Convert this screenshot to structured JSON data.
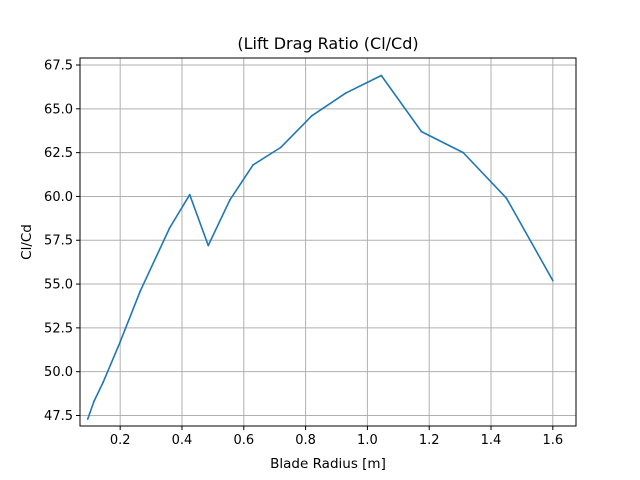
{
  "chart_data": {
    "type": "line",
    "title": "(Lift Drag Ratio (Cl/Cd)",
    "xlabel": "Blade Radius [m]",
    "ylabel": "Cl/Cd",
    "xlim": [
      0.07,
      1.675
    ],
    "ylim": [
      46.9,
      67.9
    ],
    "grid": true,
    "xticks": [
      0.2,
      0.4,
      0.6,
      0.8,
      1.0,
      1.2,
      1.4,
      1.6
    ],
    "xtick_labels": [
      "0.2",
      "0.4",
      "0.6",
      "0.8",
      "1.0",
      "1.2",
      "1.4",
      "1.6"
    ],
    "yticks": [
      47.5,
      50.0,
      52.5,
      55.0,
      57.5,
      60.0,
      62.5,
      65.0,
      67.5
    ],
    "ytick_labels": [
      "47.5",
      "50.0",
      "52.5",
      "55.0",
      "57.5",
      "60.0",
      "62.5",
      "65.0",
      "67.5"
    ],
    "series": [
      {
        "color": "#1f77b4",
        "x": [
          0.095,
          0.115,
          0.145,
          0.2,
          0.265,
          0.36,
          0.425,
          0.485,
          0.555,
          0.63,
          0.72,
          0.82,
          0.93,
          1.045,
          1.175,
          1.31,
          1.45,
          1.6
        ],
        "y": [
          47.3,
          48.3,
          49.4,
          51.7,
          54.6,
          58.2,
          60.1,
          57.2,
          59.8,
          61.8,
          62.8,
          64.6,
          65.9,
          66.9,
          63.7,
          62.5,
          59.9,
          55.2
        ]
      }
    ]
  }
}
